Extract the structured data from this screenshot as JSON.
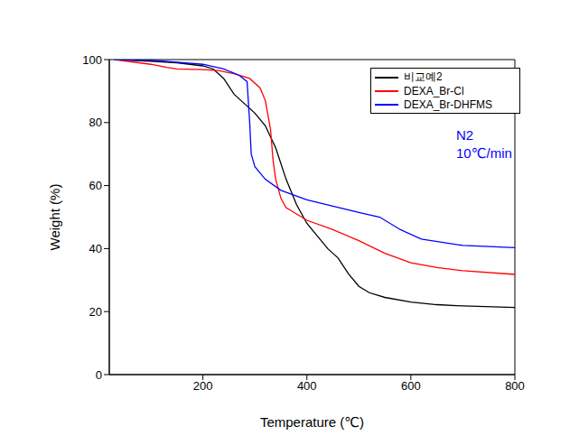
{
  "chart_data": {
    "type": "line",
    "xlabel": "Temperature (℃)",
    "ylabel": "Weight (%)",
    "annotations": [
      "N2",
      "10℃/min"
    ],
    "xlim": [
      20,
      800
    ],
    "xticks": [
      200,
      400,
      600,
      800
    ],
    "ylim": [
      0,
      100
    ],
    "yticks": [
      0,
      20,
      40,
      60,
      80,
      100
    ],
    "grid": false,
    "legend": "upper right",
    "series": [
      {
        "name": "비교예2",
        "color": "#000000",
        "x": [
          30,
          100,
          150,
          200,
          220,
          240,
          260,
          280,
          300,
          320,
          340,
          360,
          380,
          400,
          420,
          440,
          460,
          480,
          500,
          520,
          550,
          600,
          650,
          700,
          800
        ],
        "values": [
          100,
          99.5,
          99,
          98,
          97,
          94,
          89,
          86,
          83,
          79,
          72,
          62,
          54,
          48,
          44,
          40,
          37,
          32,
          28,
          26,
          24.5,
          23,
          22.2,
          21.8,
          21.3
        ]
      },
      {
        "name": "DEXA_Br-Cl",
        "color": "#ff0000",
        "x": [
          30,
          100,
          130,
          150,
          200,
          230,
          260,
          290,
          310,
          320,
          330,
          335,
          340,
          350,
          360,
          380,
          400,
          450,
          500,
          550,
          600,
          650,
          700,
          800
        ],
        "values": [
          100,
          98.5,
          97.5,
          97,
          96.8,
          96.5,
          95.5,
          94,
          91,
          87,
          78,
          68,
          62,
          56,
          53,
          51,
          49,
          46,
          42.5,
          38.5,
          35.5,
          34,
          33,
          31.8
        ]
      },
      {
        "name": "DEXA_Br-DHFMS",
        "color": "#0000ff",
        "x": [
          30,
          100,
          200,
          240,
          270,
          285,
          290,
          293,
          300,
          320,
          350,
          400,
          450,
          500,
          540,
          580,
          620,
          700,
          800
        ],
        "values": [
          100,
          99.8,
          98.5,
          97,
          95,
          93,
          80,
          70,
          66,
          62,
          58.5,
          55.5,
          53.5,
          51.5,
          50,
          46,
          43,
          41,
          40.3
        ]
      }
    ]
  }
}
